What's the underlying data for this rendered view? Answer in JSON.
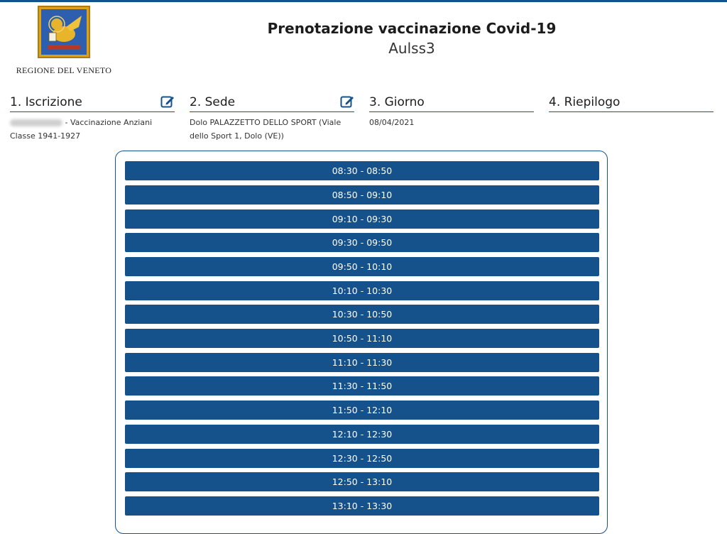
{
  "logo": {
    "caption": "REGIONE DEL VENETO"
  },
  "header": {
    "title": "Prenotazione vaccinazione Covid-19",
    "subtitle": "Aulss3"
  },
  "steps": [
    {
      "label": "1. Iscrizione",
      "detail": "- Vaccinazione Anziani Classe 1941-1927",
      "icon": "edit-icon"
    },
    {
      "label": "2. Sede",
      "detail": "Dolo PALAZZETTO DELLO SPORT (Viale dello Sport 1, Dolo (VE))",
      "icon": "edit-icon"
    },
    {
      "label": "3. Giorno",
      "detail": "08/04/2021"
    },
    {
      "label": "4. Riepilogo",
      "detail": ""
    }
  ],
  "slots": [
    "08:30 - 08:50",
    "08:50 - 09:10",
    "09:10 - 09:30",
    "09:30 - 09:50",
    "09:50 - 10:10",
    "10:10 - 10:30",
    "10:30 - 10:50",
    "10:50 - 11:10",
    "11:10 - 11:30",
    "11:30 - 11:50",
    "11:50 - 12:10",
    "12:10 - 12:30",
    "12:30 - 12:50",
    "12:50 - 13:10",
    "13:10 - 13:30"
  ],
  "colors": {
    "primary": "#15518a",
    "background": "#ffffff"
  }
}
